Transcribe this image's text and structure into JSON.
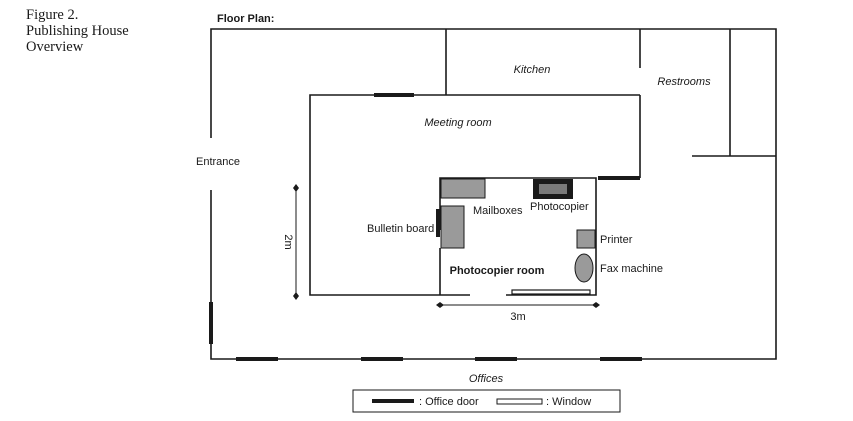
{
  "caption": {
    "line1": "Figure 2.",
    "line2": "Publishing House",
    "line3": "Overview"
  },
  "title": "Floor Plan:",
  "rooms": {
    "kitchen": "Kitchen",
    "restrooms": "Restrooms",
    "meeting_room": "Meeting room",
    "entrance": "Entrance",
    "offices": "Offices",
    "photocopier_room": "Photocopier room"
  },
  "items": {
    "mailboxes": "Mailboxes",
    "photocopier": "Photocopier",
    "bulletin_board": "Bulletin board",
    "printer": "Printer",
    "fax_machine": "Fax machine"
  },
  "dimensions": {
    "height": "2m",
    "width": "3m"
  },
  "legend": {
    "office_door": ": Office door",
    "window": ": Window"
  },
  "colors": {
    "wall": "#1a1a1a",
    "furniture": "#9a9a9a",
    "door": "#1a1a1a"
  }
}
